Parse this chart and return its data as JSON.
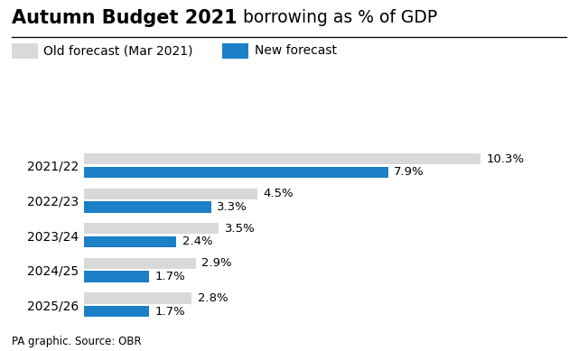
{
  "title_bold": "Autumn Budget 2021",
  "title_regular": " borrowing as % of GDP",
  "categories": [
    "2021/22",
    "2022/23",
    "2023/24",
    "2024/25",
    "2025/26"
  ],
  "old_values": [
    10.3,
    4.5,
    3.5,
    2.9,
    2.8
  ],
  "new_values": [
    7.9,
    3.3,
    2.4,
    1.7,
    1.7
  ],
  "old_color": "#d9d9d9",
  "new_color": "#1b80c5",
  "legend_old": "Old forecast (Mar 2021)",
  "legend_new": "New forecast",
  "caption": "PA graphic. Source: OBR",
  "bar_height": 0.32,
  "xlim": [
    0,
    12.0
  ],
  "label_fontsize": 9.5,
  "tick_fontsize": 10,
  "title_fontsize_bold": 15,
  "title_fontsize_regular": 13.5,
  "legend_fontsize": 10
}
